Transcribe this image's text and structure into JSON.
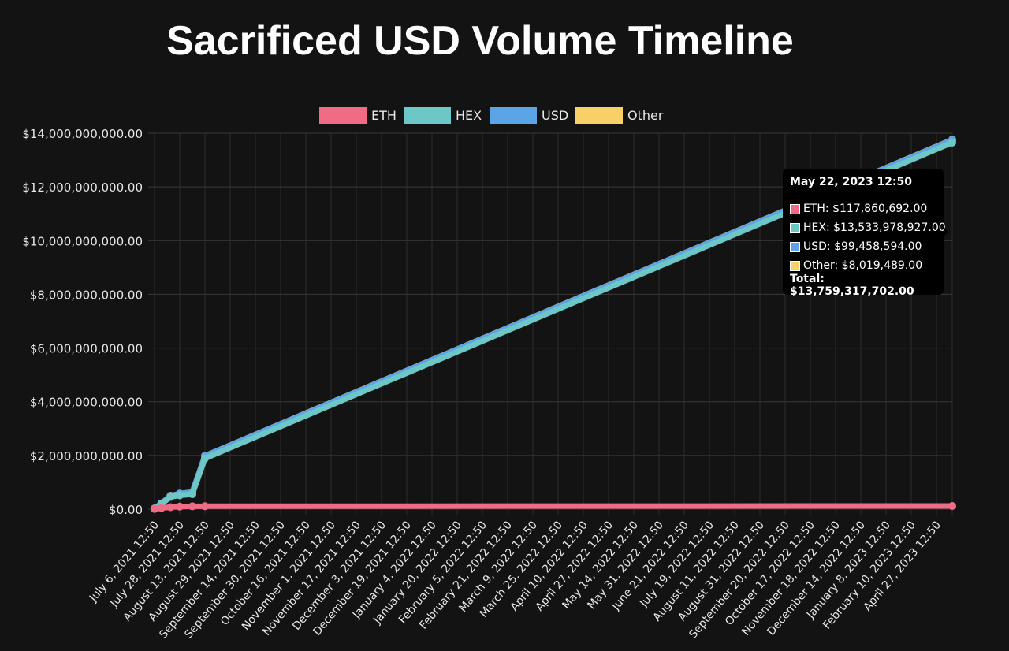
{
  "title": "Sacrificed USD Volume Timeline",
  "chart_data": {
    "type": "line",
    "title": "",
    "xlabel": "",
    "ylabel": "",
    "ylim": [
      0,
      14000000000
    ],
    "y_ticks": [
      "$0.00",
      "$2,000,000,000.00",
      "$4,000,000,000.00",
      "$6,000,000,000.00",
      "$8,000,000,000.00",
      "$10,000,000,000.00",
      "$12,000,000,000.00",
      "$14,000,000,000.00"
    ],
    "x_ticks": [
      "July 6, 2021 12:50",
      "July 28, 2021 12:50",
      "August 13, 2021 12:50",
      "August 29, 2021 12:50",
      "September 14, 2021 12:50",
      "September 30, 2021 12:50",
      "October 16, 2021 12:50",
      "November 1, 2021 12:50",
      "November 17, 2021 12:50",
      "December 3, 2021 12:50",
      "December 19, 2021 12:50",
      "January 4, 2022 12:50",
      "January 20, 2022 12:50",
      "February 5, 2022 12:50",
      "February 21, 2022 12:50",
      "March 9, 2022 12:50",
      "March 25, 2022 12:50",
      "April 10, 2022 12:50",
      "April 27, 2022 12:50",
      "May 14, 2022 12:50",
      "May 31, 2022 12:50",
      "June 21, 2022 12:50",
      "July 19, 2022 12:50",
      "August 11, 2022 12:50",
      "August 31, 2022 12:50",
      "September 20, 2022 12:50",
      "October 17, 2022 12:50",
      "November 18, 2022 12:50",
      "December 14, 2022 12:50",
      "January 8, 2023 12:50",
      "February 10, 2023 12:50",
      "April 27, 2023 12:50"
    ],
    "legend_position": "top",
    "grid": true,
    "stacked": true,
    "series": [
      {
        "name": "ETH",
        "color": "#f06b85",
        "stroke": "#f06b85",
        "x": [
          "July 6, 2021 12:50",
          "July 12, 2021 12:50",
          "July 20, 2021 12:50",
          "July 28, 2021 12:50",
          "August 5, 2021 12:50",
          "August 13, 2021 12:50",
          "May 22, 2023 12:50"
        ],
        "values": [
          10000000,
          40000000,
          75000000,
          95000000,
          105000000,
          110000000,
          117860692
        ]
      },
      {
        "name": "HEX",
        "color": "#6ec7c7",
        "stroke": "#6ec7c7",
        "x": [
          "July 6, 2021 12:50",
          "July 12, 2021 12:50",
          "July 20, 2021 12:50",
          "July 28, 2021 12:50",
          "August 5, 2021 12:50",
          "August 13, 2021 12:50",
          "May 22, 2023 12:50"
        ],
        "values": [
          10000000,
          150000000,
          380000000,
          420000000,
          450000000,
          1780000000,
          13533978927
        ]
      },
      {
        "name": "USD",
        "color": "#5ba4e6",
        "stroke": "#5ba4e6",
        "x": [
          "July 6, 2021 12:50",
          "July 12, 2021 12:50",
          "July 20, 2021 12:50",
          "July 28, 2021 12:50",
          "August 5, 2021 12:50",
          "August 13, 2021 12:50",
          "May 22, 2023 12:50"
        ],
        "values": [
          5000000,
          20000000,
          40000000,
          60000000,
          75000000,
          90000000,
          99458594
        ]
      },
      {
        "name": "Other",
        "color": "#f7d06a",
        "stroke": "#f7d06a",
        "x": [
          "July 6, 2021 12:50",
          "July 12, 2021 12:50",
          "July 20, 2021 12:50",
          "July 28, 2021 12:50",
          "August 5, 2021 12:50",
          "August 13, 2021 12:50",
          "May 22, 2023 12:50"
        ],
        "values": [
          1000000,
          3000000,
          5000000,
          6000000,
          7000000,
          7500000,
          8019489
        ]
      }
    ],
    "tooltip": {
      "title": "May 22, 2023 12:50",
      "rows": [
        {
          "label": "ETH: $117,860,692.00",
          "color": "#f06b85"
        },
        {
          "label": "HEX: $13,533,978,927.00",
          "color": "#6ec7c7"
        },
        {
          "label": "USD: $99,458,594.00",
          "color": "#5ba4e6"
        },
        {
          "label": "Other: $8,019,489.00",
          "color": "#f7d06a"
        }
      ],
      "total": "Total: $13,759,317,702.00"
    }
  }
}
